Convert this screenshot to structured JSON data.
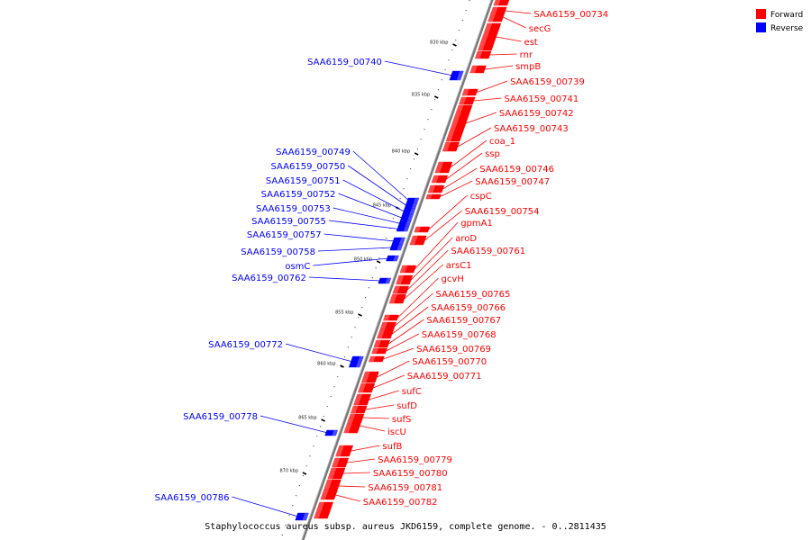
{
  "caption": "Staphylococcus aureus subsp. aureus JKD6159, complete genome. - 0..2811435",
  "legend": [
    {
      "label": "Forward",
      "color": "#ff0000"
    },
    {
      "label": "Reverse",
      "color": "#0000ff"
    }
  ],
  "colors": {
    "forward": "#ff0000",
    "reverse": "#0000ff",
    "backbone": "#777777"
  },
  "ticks": [
    "830 kbp",
    "835 kbp",
    "840 kbp",
    "845 kbp",
    "850 kbp",
    "855 kbp",
    "860 kbp",
    "865 kbp",
    "870 kbp"
  ],
  "forward_genes": [
    "SAA6159_00734",
    "secG",
    "est",
    "rnr",
    "smpB",
    "SAA6159_00739",
    "SAA6159_00741",
    "SAA6159_00742",
    "SAA6159_00743",
    "coa_1",
    "ssp",
    "SAA6159_00746",
    "SAA6159_00747",
    "cspC",
    "SAA6159_00754",
    "gpmA1",
    "aroD",
    "SAA6159_00761",
    "arsC1",
    "gcvH",
    "SAA6159_00765",
    "SAA6159_00766",
    "SAA6159_00767",
    "SAA6159_00768",
    "SAA6159_00769",
    "SAA6159_00770",
    "SAA6159_00771",
    "sufC",
    "sufD",
    "sufS",
    "iscU",
    "sufB",
    "SAA6159_00779",
    "SAA6159_00780",
    "SAA6159_00781",
    "SAA6159_00782"
  ],
  "reverse_genes": [
    "SAA6159_00740",
    "SAA6159_00749",
    "SAA6159_00750",
    "SAA6159_00751",
    "SAA6159_00752",
    "SAA6159_00753",
    "SAA6159_00755",
    "SAA6159_00757",
    "SAA6159_00758",
    "osmC",
    "SAA6159_00762",
    "SAA6159_00772",
    "SAA6159_00778",
    "SAA6159_00786"
  ]
}
